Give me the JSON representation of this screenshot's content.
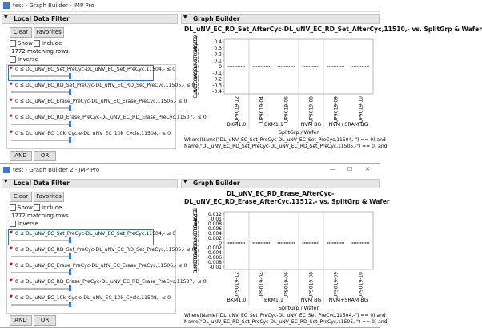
{
  "windows": [
    {
      "title": "test - Graph Builder - JMP Pro",
      "filter": {
        "header": "Local Data Filter",
        "clear": "Clear",
        "favorites": "Favorites",
        "show": "Show",
        "include": "Include",
        "matching": "1772 matching rows",
        "inverse": "Inverse",
        "filters": [
          "0 ≤ DL_uNV_EC_Set_PreCyc-DL_uNV_EC_Set_PreCyc,11504,- ≤ 0",
          "0 ≤ DL_uNV_EC_RD_Set_PreCyc-DL_uNV_EC_RD_Set_PreCyc,11505,- ≤ 0",
          "0 ≤ DL_uNV_EC_Erase_PreCyc-DL_uNV_EC_Erase_PreCyc,11506,- ≤ 0",
          "0 ≤ DL_uNV_EC_RD_Erase_PreCyc-DL_uNV_EC_RD_Erase_PreCyc,11507,- ≤ 0",
          "0 ≤ DL_uNV_EC_10k_Cycle-DL_uNV_EC_10k_Cycle,11508,- ≤ 0"
        ],
        "and": "AND",
        "or": "OR"
      },
      "graph": {
        "header": "Graph Builder",
        "title": [
          "DL_uNV_EC_RD_Set_AfterCyc-DL_uNV_EC_RD_Set_AfterCyc,11510,- vs. SplitGrp & Wafer"
        ],
        "y_label": "DL_uNV_EC_RD_Set_AfterCyc-DL_uNV_EC_RD_Set_AfterCyc,11510,-",
        "yticks": [
          "0.4",
          "0.3",
          "0.2",
          "0.1",
          "0",
          "-0.1",
          "-0.2",
          "-0.3",
          "-0.4"
        ],
        "groups": [
          {
            "name": "BKM1.0",
            "wafers": [
              "UP9019-12"
            ]
          },
          {
            "name": "BKM1.1",
            "wafers": [
              "UP9019-04",
              "UP9019-06"
            ]
          },
          {
            "name": "NVM BG",
            "wafers": [
              "UP9019-08"
            ]
          },
          {
            "name": "NVM+SRAM BG",
            "wafers": [
              "UP9019-09",
              "UP9019-10"
            ]
          }
        ],
        "x_label": "SplitGrp / Wafer",
        "where": [
          "Where(Name(\"DL_uNV_EC_Set_PreCyc-DL_uNV_EC_Set_PreCyc,11504,-\") == 0) and",
          "Name(\"DL_uNV_EC_RD_Set_PreCyc-DL_uNV_EC_RD_Set_PreCyc,11505,-\") == 0) and"
        ]
      }
    },
    {
      "title": "test - Graph Builder 2 - JMP Pro",
      "filter": {
        "header": "Local Data Filter",
        "clear": "Clear",
        "favorites": "Favorites",
        "show": "Show",
        "include": "Include",
        "matching": "1772 matching rows",
        "inverse": "Inverse",
        "filters": [
          "0 ≤ DL_uNV_EC_Set_PreCyc-DL_uNV_EC_Set_PreCyc,11504,- ≤ 0",
          "0 ≤ DL_uNV_EC_RD_Set_PreCyc-DL_uNV_EC_RD_Set_PreCyc,11505,- ≤ 0",
          "0 ≤ DL_uNV_EC_Erase_PreCyc-DL_uNV_EC_Erase_PreCyc,11506,- ≤ 0",
          "0 ≤ DL_uNV_EC_RD_Erase_PreCyc-DL_uNV_EC_RD_Erase_PreCyc,11507,- ≤ 0",
          "0 ≤ DL_uNV_EC_10k_Cycle-DL_uNV_EC_10k_Cycle,11508,- ≤ 0"
        ],
        "and": "AND",
        "or": "OR"
      },
      "graph": {
        "header": "Graph Builder",
        "title": [
          "DL_uNV_EC_RD_Erase_AfterCyc-",
          "DL_uNV_EC_RD_Erase_AfterCyc,11512,- vs. SplitGrp & Wafer"
        ],
        "y_label": "DL_uNV_EC_RD_Erase_AfterCyc-DL_uNV_EC_RD_Erase_AfterCyc,11512,-",
        "yticks": [
          "0.012",
          "0.01",
          "0.008",
          "0.006",
          "0.004",
          "0.002",
          "0",
          "-0.002",
          "-0.004",
          "-0.006",
          "-0.008",
          "-0.01"
        ],
        "groups": [
          {
            "name": "BKM1.0",
            "wafers": [
              "UP9019-12"
            ]
          },
          {
            "name": "BKM1.1",
            "wafers": [
              "UP9019-04",
              "UP9019-06"
            ]
          },
          {
            "name": "NVM BG",
            "wafers": [
              "UP9019-08"
            ]
          },
          {
            "name": "NVM+SRAM BG",
            "wafers": [
              "UP9019-09",
              "UP9019-10"
            ]
          }
        ],
        "x_label": "SplitGrp / Wafer",
        "where": [
          "Where(Name(\"DL_uNV_EC_Set_PreCyc-DL_uNV_EC_Set_PreCyc,11504,-\") == 0) and",
          "Name(\"DL_uNV_EC_RD_Set_PreCyc-DL_uNV_EC_RD_Set_PreCyc,11505,-\") == 0) and"
        ]
      }
    }
  ]
}
